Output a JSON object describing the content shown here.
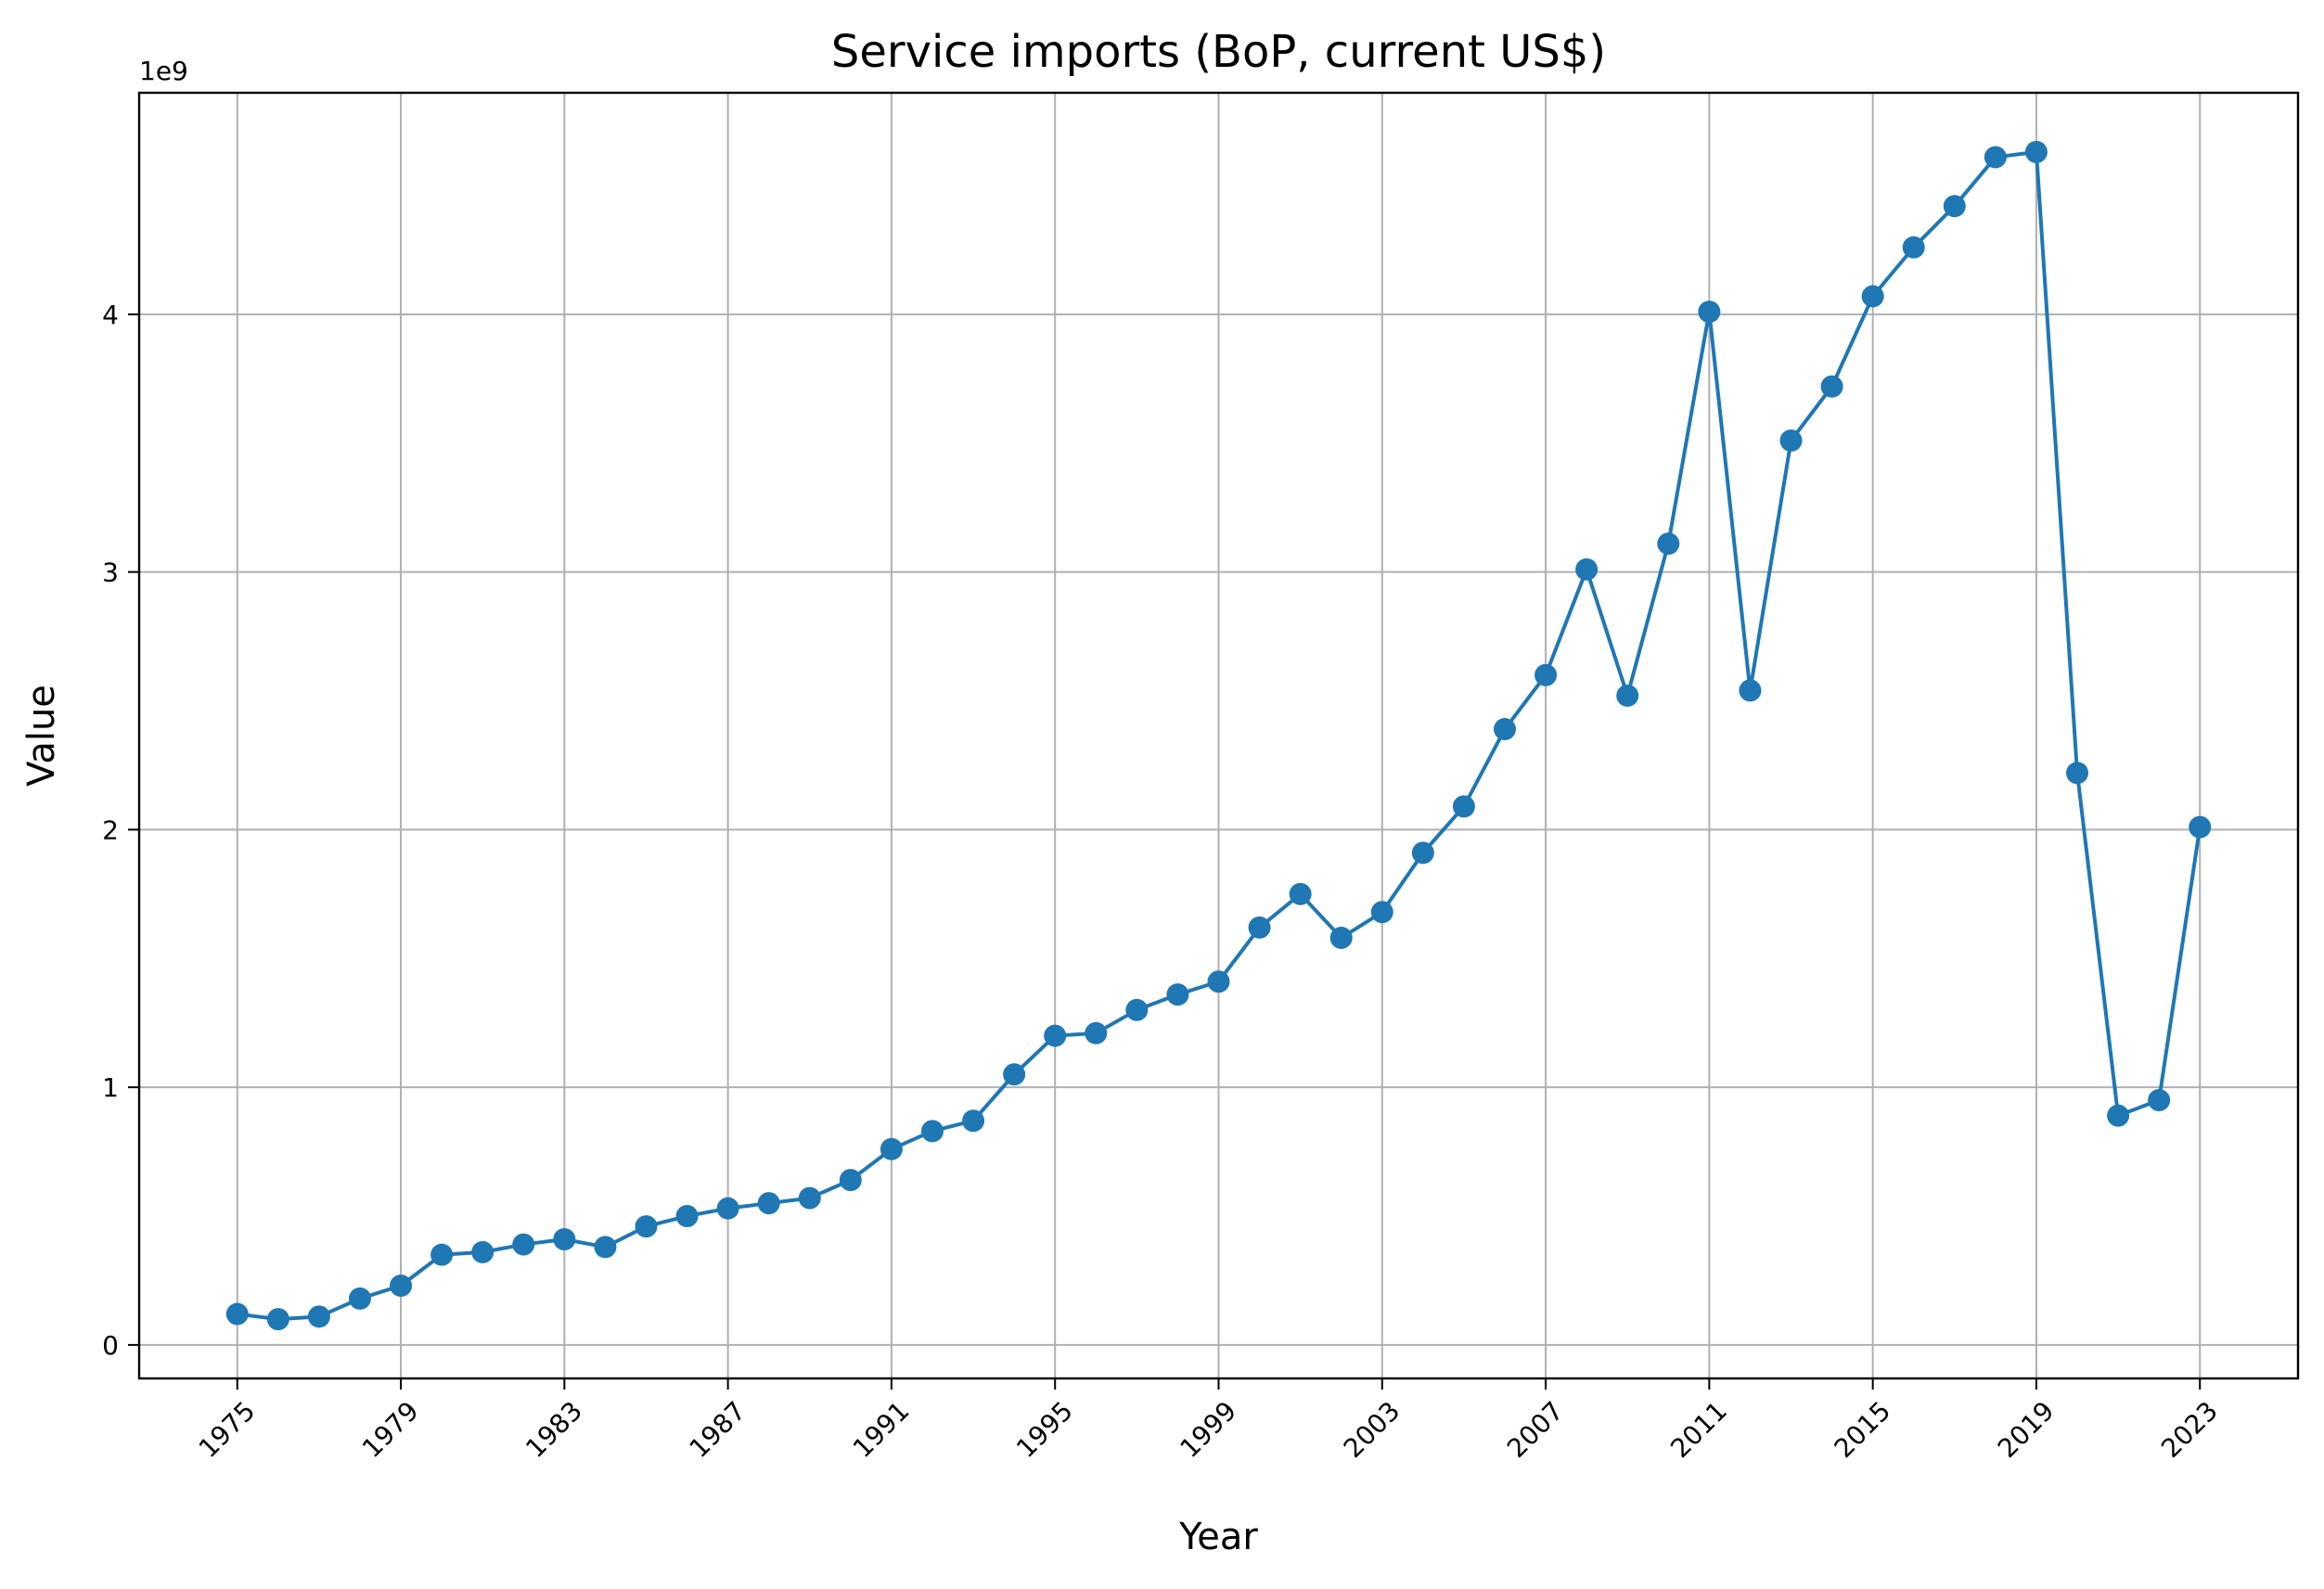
{
  "chart_data": {
    "type": "line",
    "title": "Service imports (BoP, current US$)",
    "xlabel": "Year",
    "ylabel": "Value",
    "y_offset_label": "1e9",
    "y_scale": 1000000000,
    "xlim": [
      1972.6,
      2025.4
    ],
    "ylim": [
      -0.13,
      4.86
    ],
    "x_ticks": [
      1975,
      1979,
      1983,
      1987,
      1991,
      1995,
      1999,
      2003,
      2007,
      2011,
      2015,
      2019,
      2023
    ],
    "y_ticks": [
      0,
      1,
      2,
      3,
      4
    ],
    "grid": true,
    "line_color": "#1f77b4",
    "series": [
      {
        "x": [
          1975,
          1976,
          1977,
          1978,
          1979,
          1980,
          1981,
          1982,
          1983,
          1984,
          1985,
          1986,
          1987,
          1988,
          1989,
          1990,
          1991,
          1992,
          1993,
          1994,
          1995,
          1996,
          1997,
          1998,
          1999,
          2000,
          2001,
          2002,
          2003,
          2004,
          2005,
          2006,
          2007,
          2008,
          2009,
          2010,
          2011,
          2012,
          2013,
          2014,
          2015,
          2016,
          2017,
          2018,
          2019,
          2020,
          2021,
          2022,
          2023
        ],
        "values": [
          0.12,
          0.1,
          0.11,
          0.18,
          0.23,
          0.35,
          0.36,
          0.39,
          0.41,
          0.38,
          0.46,
          0.5,
          0.53,
          0.55,
          0.57,
          0.64,
          0.76,
          0.83,
          0.87,
          1.05,
          1.2,
          1.21,
          1.3,
          1.36,
          1.41,
          1.62,
          1.75,
          1.58,
          1.68,
          1.91,
          2.09,
          2.39,
          2.6,
          3.01,
          2.52,
          3.11,
          4.01,
          2.54,
          3.51,
          3.72,
          4.07,
          4.26,
          4.42,
          4.61,
          4.63,
          2.22,
          0.89,
          0.95,
          2.01
        ]
      }
    ]
  }
}
